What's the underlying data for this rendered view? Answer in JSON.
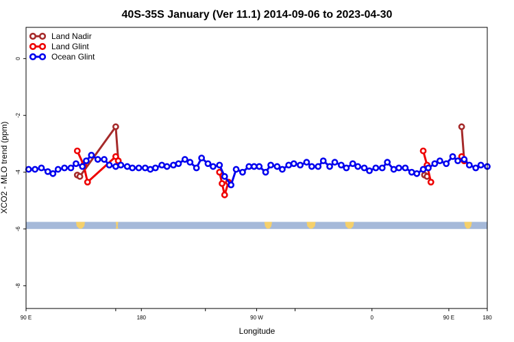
{
  "chart_data": {
    "type": "line",
    "title": "40S-35S January (Ver 11.1)   2014-09-06 to 2023-04-30",
    "xlabel": "Longitude",
    "ylabel": "XCO2 - MLO trend (ppm)",
    "xlim": [
      90,
      450
    ],
    "ylim": [
      -8.8,
      1.1
    ],
    "x_ticks": [
      90,
      160,
      180,
      230,
      270,
      300,
      360,
      420,
      450
    ],
    "x_tick_labels": [
      "90 E",
      "",
      "180",
      "",
      "90 W",
      "",
      "0",
      "90 E",
      "180"
    ],
    "y_ticks": [
      0,
      -2,
      -4,
      -6,
      -8
    ],
    "y_tick_labels": [
      "0",
      "-2",
      "-4",
      "-6",
      "-8"
    ],
    "legend": {
      "position": "top-left",
      "entries": [
        "Land Nadir",
        "Land Glint",
        "Ocean Glint"
      ]
    },
    "colors": {
      "land_nadir": "#a52a2a",
      "land_glint": "#ee0000",
      "ocean_glint": "#0000ee",
      "ocean_band": "#a5b9d9",
      "land_band": "#f5d06b"
    },
    "land_band": {
      "y_range": [
        -6.0,
        -5.75
      ]
    },
    "land_patches": [
      [
        129,
        136
      ],
      [
        160,
        162
      ],
      [
        276,
        282
      ],
      [
        309,
        316
      ],
      [
        339,
        346
      ],
      [
        432,
        438
      ]
    ],
    "series": [
      {
        "name": "Land Nadir",
        "key": "land_nadir",
        "segments": [
          {
            "x": [
              130,
              132,
              160,
              162
            ],
            "y": [
              -4.1,
              -4.15,
              -2.4,
              -3.6
            ]
          },
          {
            "x": [
              401,
              403
            ],
            "y": [
              -4.1,
              -4.15
            ]
          },
          {
            "x": [
              430,
              432
            ],
            "y": [
              -2.4,
              -3.6
            ]
          }
        ]
      },
      {
        "name": "Land Glint",
        "key": "land_glint",
        "segments": [
          {
            "x": [
              130,
              135,
              138,
              160,
              162
            ],
            "y": [
              -3.25,
              -3.75,
              -4.35,
              -3.45,
              -3.6
            ]
          },
          {
            "x": [
              241,
              243,
              245,
              248
            ],
            "y": [
              -4.0,
              -4.4,
              -4.8,
              -4.35
            ]
          },
          {
            "x": [
              400,
              403,
              406
            ],
            "y": [
              -3.25,
              -3.75,
              -4.35
            ]
          },
          {
            "x": [
              430,
              432
            ],
            "y": [
              -3.45,
              -3.6
            ]
          }
        ]
      },
      {
        "name": "Ocean Glint",
        "key": "ocean_glint",
        "segments": [
          {
            "x": [
              92,
              97,
              102,
              107,
              111,
              115,
              120,
              125,
              129,
              134,
              137,
              141,
              146,
              151,
              155,
              160,
              164,
              169,
              173,
              178,
              183,
              187,
              191,
              196,
              200,
              205,
              209,
              214,
              218,
              223,
              227,
              232,
              236,
              241,
              245,
              250,
              254,
              259,
              264,
              268,
              272,
              277,
              281,
              286,
              290,
              295,
              299,
              304,
              309,
              313,
              318,
              322,
              327,
              331,
              336,
              340,
              345,
              349,
              354,
              358,
              363,
              368,
              372,
              377,
              381,
              386,
              391,
              395,
              400,
              404,
              409,
              413,
              418,
              423,
              427,
              432,
              436,
              441,
              445,
              450
            ],
            "y": [
              -3.9,
              -3.9,
              -3.85,
              -3.98,
              -4.05,
              -3.9,
              -3.85,
              -3.85,
              -3.7,
              -3.8,
              -3.6,
              -3.4,
              -3.55,
              -3.55,
              -3.75,
              -3.8,
              -3.75,
              -3.8,
              -3.85,
              -3.85,
              -3.85,
              -3.9,
              -3.85,
              -3.75,
              -3.8,
              -3.75,
              -3.7,
              -3.55,
              -3.65,
              -3.85,
              -3.5,
              -3.7,
              -3.8,
              -3.75,
              -4.15,
              -4.45,
              -3.9,
              -4.0,
              -3.8,
              -3.8,
              -3.8,
              -4.0,
              -3.75,
              -3.8,
              -3.9,
              -3.75,
              -3.7,
              -3.75,
              -3.65,
              -3.8,
              -3.8,
              -3.6,
              -3.8,
              -3.65,
              -3.75,
              -3.85,
              -3.7,
              -3.8,
              -3.85,
              -3.95,
              -3.85,
              -3.85,
              -3.65,
              -3.9,
              -3.85,
              -3.85,
              -4.0,
              -4.05,
              -3.9,
              -3.85,
              -3.7,
              -3.6,
              -3.7,
              -3.45,
              -3.6,
              -3.55,
              -3.75,
              -3.85,
              -3.75,
              -3.8
            ]
          }
        ]
      }
    ]
  }
}
